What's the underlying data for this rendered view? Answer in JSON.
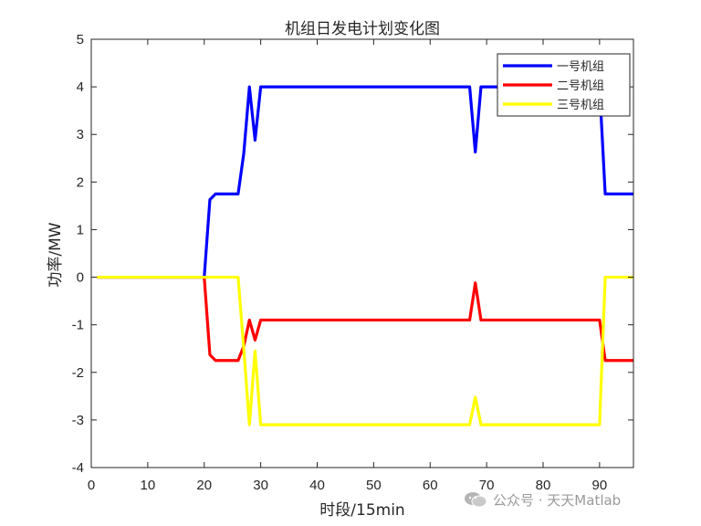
{
  "chart_data": {
    "type": "line",
    "title": "机组日发电计划变化图",
    "xlabel": "时段/15min",
    "ylabel": "功率/MW",
    "xlim": [
      0,
      96
    ],
    "ylim": [
      -4,
      5
    ],
    "xticks": [
      0,
      10,
      20,
      30,
      40,
      50,
      60,
      70,
      80,
      90
    ],
    "yticks": [
      -4,
      -3,
      -2,
      -1,
      0,
      1,
      2,
      3,
      4,
      5
    ],
    "grid": false,
    "legend_position": "top-right",
    "series": [
      {
        "name": "一号机组",
        "color": "#0000ff",
        "points": [
          [
            1,
            0
          ],
          [
            20,
            0
          ],
          [
            21,
            1.63
          ],
          [
            22,
            1.75
          ],
          [
            26,
            1.75
          ],
          [
            27,
            2.6
          ],
          [
            28,
            4
          ],
          [
            29,
            2.88
          ],
          [
            30,
            4
          ],
          [
            67,
            4
          ],
          [
            68,
            2.63
          ],
          [
            69,
            4
          ],
          [
            90,
            4
          ],
          [
            91,
            1.75
          ],
          [
            96,
            1.75
          ]
        ]
      },
      {
        "name": "二号机组",
        "color": "#ff0000",
        "points": [
          [
            1,
            0
          ],
          [
            20,
            0
          ],
          [
            21,
            -1.63
          ],
          [
            22,
            -1.75
          ],
          [
            26,
            -1.75
          ],
          [
            27,
            -1.45
          ],
          [
            28,
            -0.9
          ],
          [
            29,
            -1.32
          ],
          [
            30,
            -0.9
          ],
          [
            67,
            -0.9
          ],
          [
            68,
            -0.12
          ],
          [
            69,
            -0.9
          ],
          [
            90,
            -0.9
          ],
          [
            91,
            -1.75
          ],
          [
            96,
            -1.75
          ]
        ]
      },
      {
        "name": "三号机组",
        "color": "#ffff00",
        "points": [
          [
            1,
            0
          ],
          [
            26,
            0
          ],
          [
            27,
            -1.5
          ],
          [
            28,
            -3.1
          ],
          [
            29,
            -1.55
          ],
          [
            30,
            -3.1
          ],
          [
            67,
            -3.1
          ],
          [
            68,
            -2.52
          ],
          [
            69,
            -3.1
          ],
          [
            90,
            -3.1
          ],
          [
            91,
            0
          ],
          [
            96,
            0
          ]
        ]
      }
    ]
  },
  "watermark": {
    "icon": "wechat-icon",
    "text": "公众号 · 天天Matlab"
  }
}
